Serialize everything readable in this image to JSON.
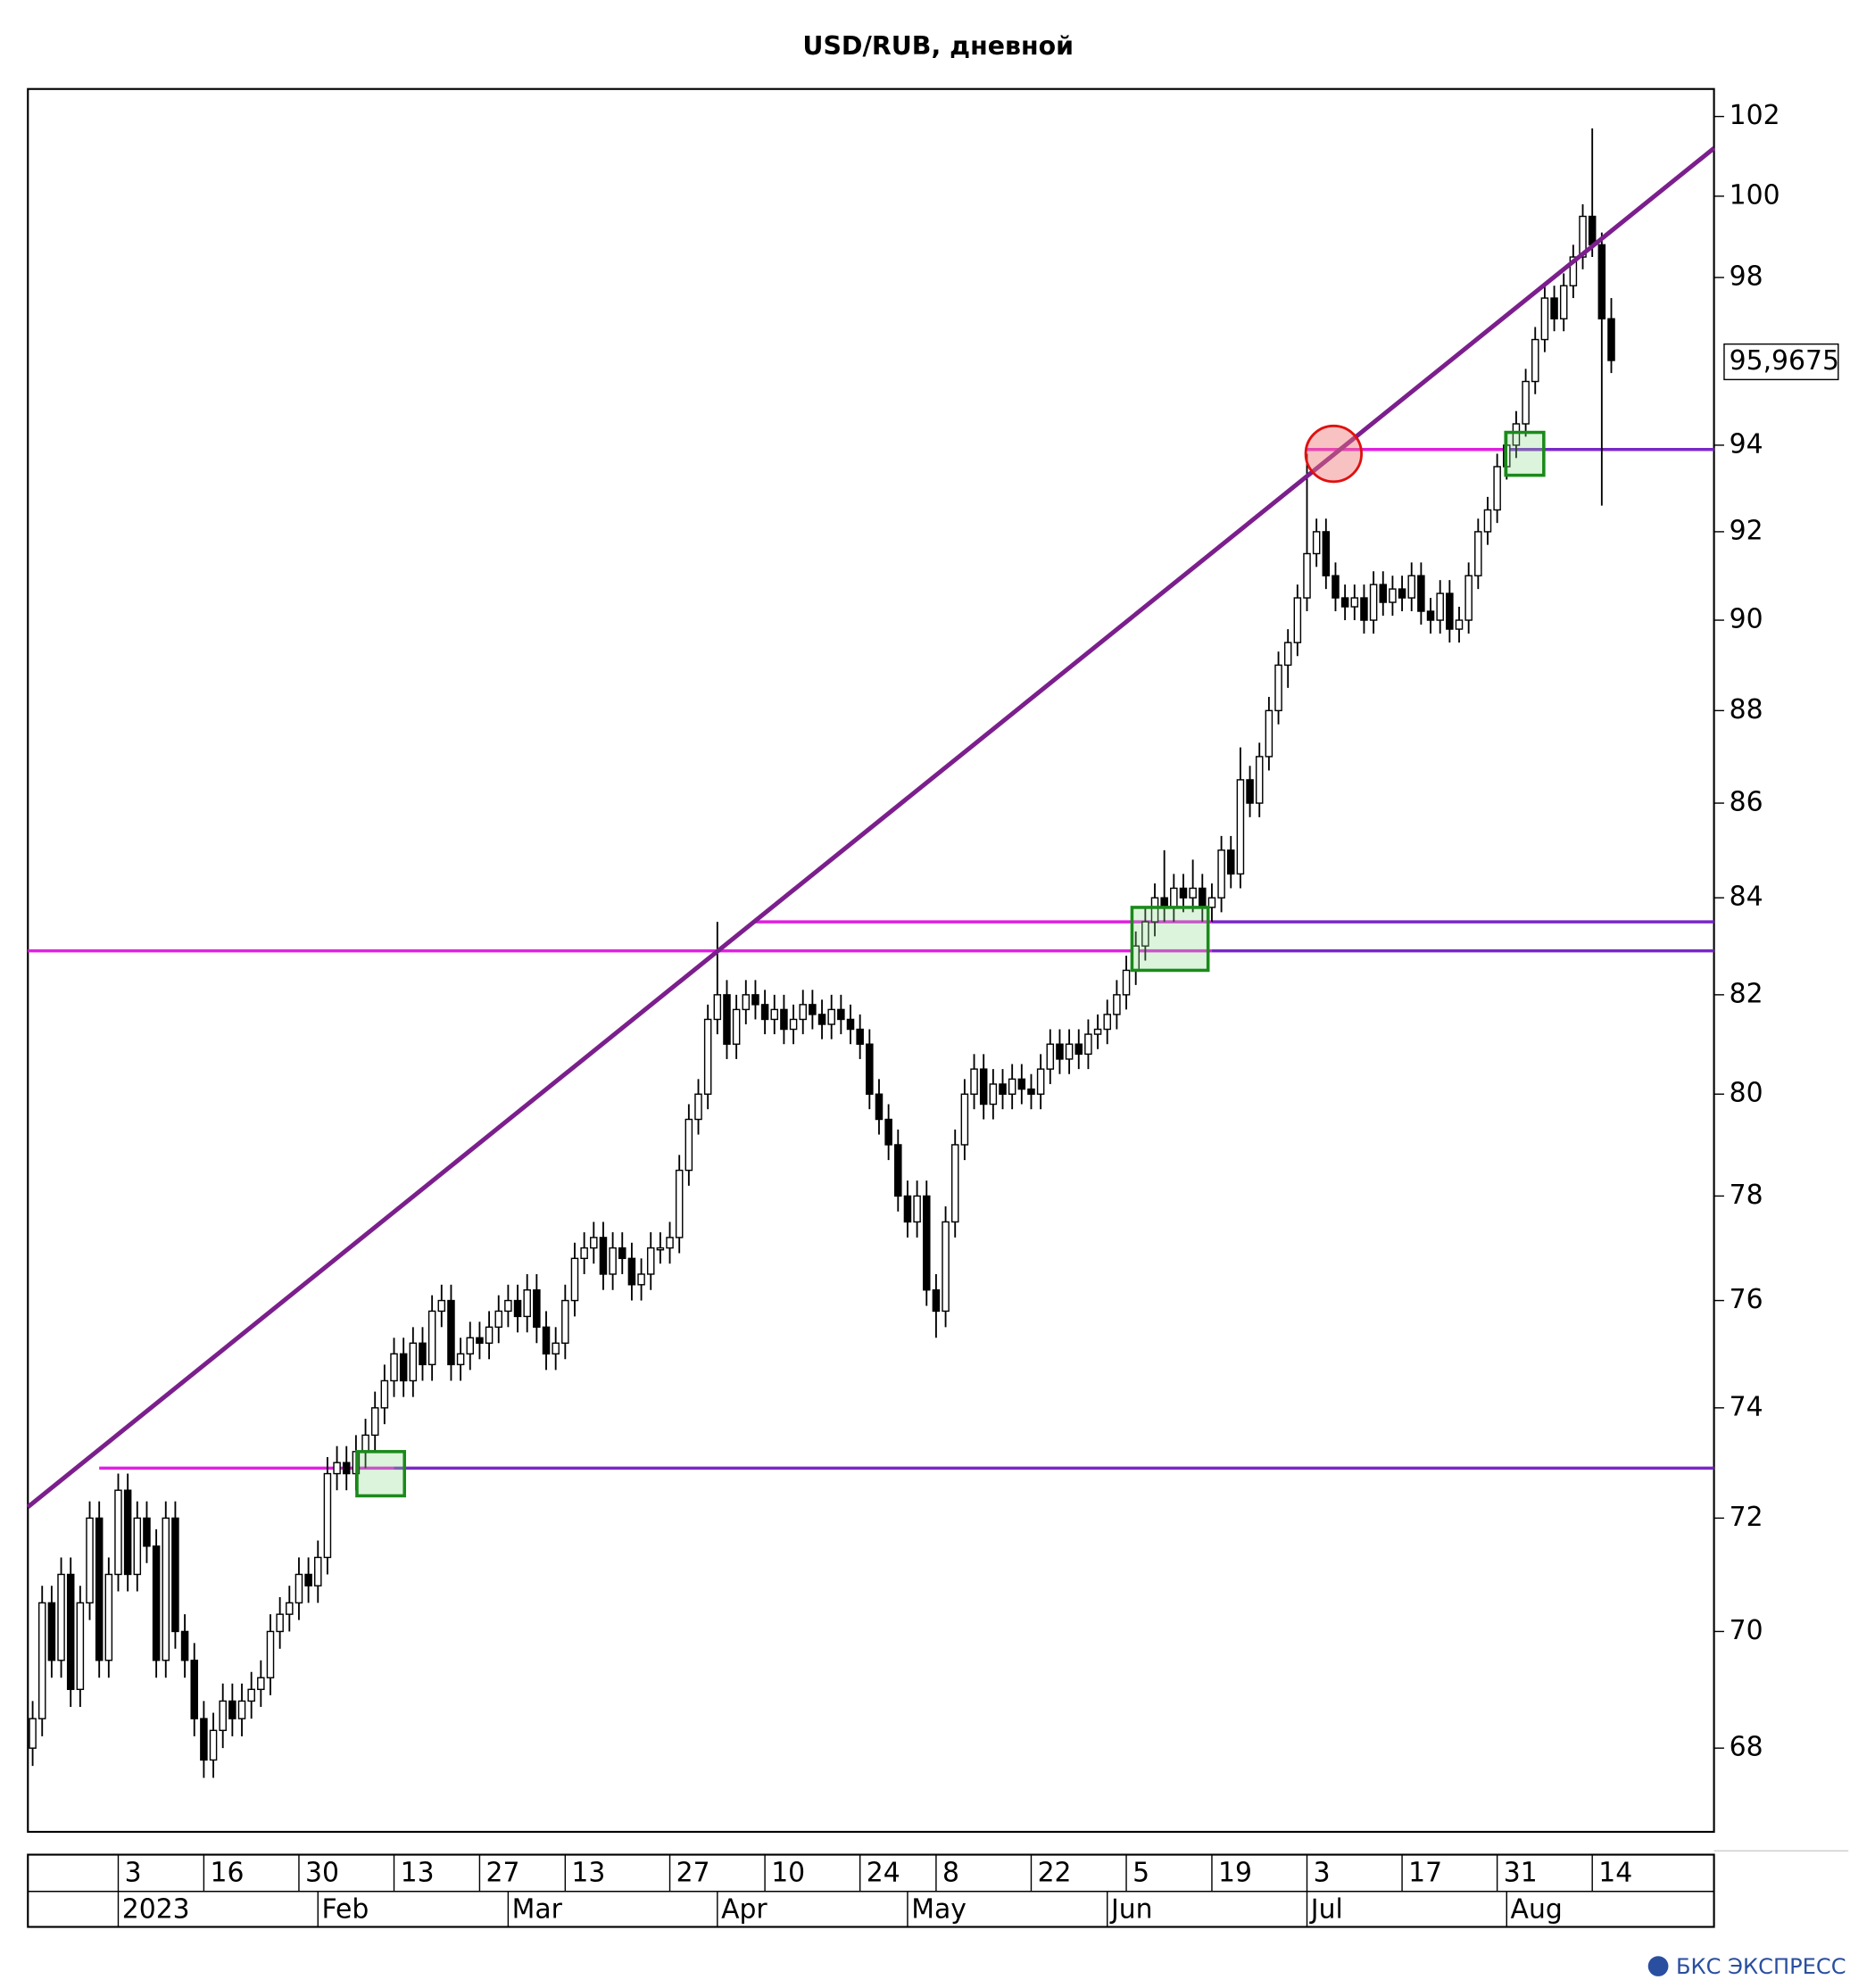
{
  "chart_data": {
    "type": "candlestick",
    "title": "USD/RUB, дневной",
    "log_scale": true,
    "ylim": [
      66.6,
      102.7
    ],
    "xlim": [
      -0.5,
      176.8
    ],
    "yticks": [
      68,
      70,
      72,
      74,
      76,
      78,
      80,
      82,
      84,
      86,
      88,
      90,
      92,
      94,
      98,
      100,
      102
    ],
    "last_price": {
      "value": 95.9675,
      "label": "95,9675"
    },
    "day_ticks": [
      {
        "value": 9,
        "label": "3"
      },
      {
        "value": 18,
        "label": "16"
      },
      {
        "value": 28,
        "label": "30"
      },
      {
        "value": 38,
        "label": "13"
      },
      {
        "value": 47,
        "label": "27"
      },
      {
        "value": 56,
        "label": "13"
      },
      {
        "value": 67,
        "label": "27"
      },
      {
        "value": 77,
        "label": "10"
      },
      {
        "value": 87,
        "label": "24"
      },
      {
        "value": 95,
        "label": "8"
      },
      {
        "value": 105,
        "label": "22"
      },
      {
        "value": 115,
        "label": "5"
      },
      {
        "value": 124,
        "label": "19"
      },
      {
        "value": 134,
        "label": "3"
      },
      {
        "value": 144,
        "label": "17"
      },
      {
        "value": 154,
        "label": "31"
      },
      {
        "value": 164,
        "label": "14"
      }
    ],
    "month_ticks": [
      {
        "value": 9,
        "label": "2023"
      },
      {
        "value": 30,
        "label": "Feb"
      },
      {
        "value": 50,
        "label": "Mar"
      },
      {
        "value": 72,
        "label": "Apr"
      },
      {
        "value": 92,
        "label": "May"
      },
      {
        "value": 113,
        "label": "Jun"
      },
      {
        "value": 134,
        "label": "Jul"
      },
      {
        "value": 155,
        "label": "Aug"
      }
    ],
    "open": [
      68,
      68.5,
      70.5,
      69.5,
      71,
      69,
      70.5,
      72,
      69.5,
      71,
      72.5,
      71,
      72,
      71.5,
      69.5,
      72,
      70,
      69.5,
      68.5,
      67.8,
      68.3,
      68.8,
      68.5,
      68.8,
      69,
      69.2,
      70,
      70.3,
      70.5,
      71,
      70.8,
      71.3,
      72.8,
      73,
      72.8,
      73.2,
      73.5,
      74,
      74.5,
      75,
      74.5,
      75.2,
      74.8,
      75.8,
      76,
      74.8,
      75,
      75.3,
      75.2,
      75.5,
      75.8,
      76,
      75.7,
      76.2,
      75.5,
      75,
      75.2,
      76,
      76.8,
      77,
      77.2,
      76.5,
      77,
      76.8,
      76.3,
      76.5,
      77,
      77,
      77.2,
      78.5,
      79.5,
      80,
      81.5,
      82,
      81,
      81.7,
      82,
      81.8,
      81.5,
      81.7,
      81.3,
      81.5,
      81.8,
      81.6,
      81.4,
      81.7,
      81.5,
      81.3,
      81,
      80,
      79.5,
      79,
      78,
      77.5,
      78,
      76.2,
      75.8,
      77.5,
      79,
      80,
      80.5,
      79.8,
      80.2,
      80,
      80.3,
      80.1,
      80,
      80.5,
      81,
      80.7,
      81,
      80.8,
      81.2,
      81.3,
      81.6,
      82,
      82.5,
      83,
      83.5,
      84,
      83.8,
      84.2,
      84,
      84.2,
      83.8,
      84,
      85,
      84.5,
      86.5,
      86,
      87,
      88,
      89,
      89.5,
      90.5,
      91.5,
      92,
      91,
      90.5,
      90.3,
      90.5,
      90,
      90.8,
      90.4,
      90.7,
      90.5,
      91,
      90.2,
      90,
      90.6,
      89.8,
      90,
      91,
      92,
      92.5,
      93.5,
      94,
      94.5,
      95.5,
      96.5,
      97.5,
      97,
      97.8,
      98.5,
      99.5,
      98.8,
      97
    ],
    "high": [
      68.8,
      70.8,
      70.8,
      71.3,
      71.3,
      70.8,
      72.3,
      72.3,
      71.3,
      72.8,
      72.8,
      72.3,
      72.3,
      71.8,
      72.3,
      72.3,
      70.3,
      69.8,
      68.8,
      68.6,
      69.1,
      69.1,
      69.1,
      69.3,
      69.5,
      70.3,
      70.6,
      70.8,
      71.3,
      71.3,
      71.6,
      73.1,
      73.3,
      73.3,
      73.5,
      73.8,
      74.3,
      74.8,
      75.3,
      75.3,
      75.5,
      75.5,
      76.1,
      76.3,
      76.3,
      75.3,
      75.6,
      75.6,
      75.8,
      76.1,
      76.3,
      76.3,
      76.5,
      76.5,
      75.8,
      75.5,
      76.3,
      77.1,
      77.3,
      77.5,
      77.5,
      77.3,
      77.3,
      77.1,
      76.8,
      77.3,
      77.3,
      77.5,
      78.8,
      79.8,
      80.3,
      81.8,
      83.5,
      82.3,
      82,
      82.3,
      82.3,
      82.1,
      82,
      82,
      81.8,
      82.1,
      82.1,
      81.9,
      82,
      82,
      81.8,
      81.6,
      81.3,
      80.3,
      79.8,
      79.3,
      78.3,
      78.3,
      78.3,
      76.5,
      77.8,
      79.3,
      80.3,
      80.8,
      80.8,
      80.5,
      80.5,
      80.6,
      80.6,
      80.4,
      80.8,
      81.3,
      81.3,
      81.3,
      81.3,
      81.5,
      81.6,
      81.9,
      82.3,
      82.8,
      83.3,
      83.8,
      84.3,
      85,
      84.5,
      84.5,
      84.8,
      84.5,
      84.3,
      85.3,
      85.3,
      87.2,
      86.8,
      87.3,
      88.3,
      89.3,
      89.8,
      90.8,
      93.8,
      92.3,
      92.3,
      91.3,
      90.8,
      90.8,
      90.8,
      91.1,
      91.1,
      91,
      91,
      91.3,
      91.3,
      90.5,
      90.9,
      90.9,
      90.3,
      91.3,
      92.3,
      92.8,
      93.8,
      94.3,
      94.8,
      95.8,
      96.8,
      97.8,
      97.8,
      98.1,
      98.8,
      99.8,
      101.7,
      99.1,
      97.5
    ],
    "low": [
      67.7,
      68.2,
      69.2,
      69.2,
      68.7,
      68.7,
      70.2,
      69.2,
      69.2,
      70.7,
      70.7,
      70.7,
      71.2,
      69.2,
      69.2,
      69.7,
      69.2,
      68.2,
      67.5,
      67.5,
      68,
      68.2,
      68.2,
      68.5,
      68.7,
      68.9,
      69.7,
      70,
      70.2,
      70.5,
      70.5,
      71,
      72.5,
      72.5,
      72.5,
      72.9,
      73.2,
      73.7,
      74.2,
      74.2,
      74.2,
      74.5,
      74.5,
      75.5,
      74.5,
      74.5,
      74.7,
      74.9,
      74.9,
      75.2,
      75.5,
      75.4,
      75.4,
      75.2,
      74.7,
      74.7,
      74.9,
      75.7,
      76.5,
      76.7,
      76.2,
      76.2,
      76.5,
      76,
      76,
      76.2,
      76.7,
      76.7,
      76.9,
      78.2,
      79.2,
      79.7,
      81.2,
      80.7,
      80.7,
      81.4,
      81.5,
      81.2,
      81.2,
      81,
      81,
      81.2,
      81.3,
      81.1,
      81.1,
      81.2,
      81,
      80.7,
      79.7,
      79.2,
      78.7,
      77.7,
      77.2,
      77.2,
      75.9,
      75.3,
      75.5,
      77.2,
      78.7,
      79.7,
      79.5,
      79.5,
      79.7,
      79.7,
      79.8,
      79.7,
      79.7,
      80.2,
      80.4,
      80.4,
      80.5,
      80.5,
      80.9,
      81,
      81.3,
      81.7,
      82.2,
      82.7,
      83.2,
      83.5,
      83.5,
      83.7,
      83.7,
      83.5,
      83.5,
      83.7,
      84.2,
      84.2,
      85.7,
      85.7,
      86.7,
      87.7,
      88.5,
      89.2,
      90.2,
      91.2,
      90.7,
      90.2,
      90,
      90,
      89.7,
      89.7,
      90.1,
      90.1,
      90.2,
      90.2,
      89.9,
      89.7,
      89.7,
      89.5,
      89.5,
      89.7,
      90.7,
      91.7,
      92.2,
      93.2,
      93.7,
      94.2,
      95.2,
      96.2,
      96.7,
      96.7,
      97.5,
      98.2,
      98.5,
      92.6,
      95.7
    ],
    "close": [
      68.5,
      70.5,
      69.5,
      71,
      69,
      70.5,
      72,
      69.5,
      71,
      72.5,
      71,
      72,
      71.5,
      69.5,
      72,
      70,
      69.5,
      68.5,
      67.8,
      68.3,
      68.8,
      68.5,
      68.8,
      69,
      69.2,
      70,
      70.3,
      70.5,
      71,
      70.8,
      71.3,
      72.8,
      73,
      72.8,
      73.2,
      73.5,
      74,
      74.5,
      75,
      74.5,
      75.2,
      74.8,
      75.8,
      76,
      74.8,
      75,
      75.3,
      75.2,
      75.5,
      75.8,
      76,
      75.7,
      76.2,
      75.5,
      75,
      75.2,
      76,
      76.8,
      77,
      77.2,
      76.5,
      77,
      76.8,
      76.3,
      76.5,
      77,
      77,
      77.2,
      78.5,
      79.5,
      80,
      81.5,
      82,
      81,
      81.7,
      82,
      81.8,
      81.5,
      81.7,
      81.3,
      81.5,
      81.8,
      81.6,
      81.4,
      81.7,
      81.5,
      81.3,
      81,
      80,
      79.5,
      79,
      78,
      77.5,
      78,
      76.2,
      75.8,
      77.5,
      79,
      80,
      80.5,
      79.8,
      80.2,
      80,
      80.3,
      80.1,
      80,
      80.5,
      81,
      80.7,
      81,
      80.8,
      81.2,
      81.3,
      81.6,
      82,
      82.5,
      83,
      83.5,
      84,
      83.8,
      84.2,
      84,
      84.2,
      83.8,
      84,
      85,
      84.5,
      86.5,
      86,
      87,
      88,
      89,
      89.5,
      90.5,
      91.5,
      92,
      91,
      90.5,
      90.3,
      90.5,
      90,
      90.8,
      90.4,
      90.7,
      90.5,
      91,
      90.2,
      90,
      90.6,
      89.8,
      90,
      91,
      92,
      92.5,
      93.5,
      94,
      94.5,
      95.5,
      96.5,
      97.5,
      97,
      97.8,
      98.5,
      99.5,
      98.8,
      97,
      96
    ],
    "trend_line": {
      "x": [
        -0.5,
        176.8
      ],
      "y": [
        72.2,
        101.2
      ],
      "color": "#7b1f8c"
    },
    "levels": [
      {
        "y": 72.9,
        "x": [
          7,
          38
        ],
        "color": "#e020e0"
      },
      {
        "y": 72.9,
        "x": [
          38,
          176.8
        ],
        "color": "#7a28c8"
      },
      {
        "y": 82.9,
        "x": [
          -0.5,
          124
        ],
        "color": "#e020e0"
      },
      {
        "y": 82.9,
        "x": [
          124,
          176.8
        ],
        "color": "#7a28c8"
      },
      {
        "y": 83.5,
        "x": [
          76,
          124
        ],
        "color": "#e020e0"
      },
      {
        "y": 83.5,
        "x": [
          124,
          176.8
        ],
        "color": "#7a28c8"
      },
      {
        "y": 93.9,
        "x": [
          134,
          155
        ],
        "color": "#e020e0"
      },
      {
        "y": 93.9,
        "x": [
          155,
          176.8
        ],
        "color": "#7a28c8"
      }
    ],
    "highlight_boxes": [
      {
        "x": [
          34.1,
          39.1
        ],
        "y": [
          72.4,
          73.2
        ]
      },
      {
        "x": [
          115.6,
          123.6
        ],
        "y": [
          82.5,
          83.8
        ]
      },
      {
        "x": [
          154.9,
          158.9
        ],
        "y": [
          93.3,
          94.3
        ]
      }
    ],
    "highlight_circle": {
      "x": 136.8,
      "y": 93.8
    }
  },
  "footer": {
    "logo": "БКС ЭКСПРЕСС"
  }
}
